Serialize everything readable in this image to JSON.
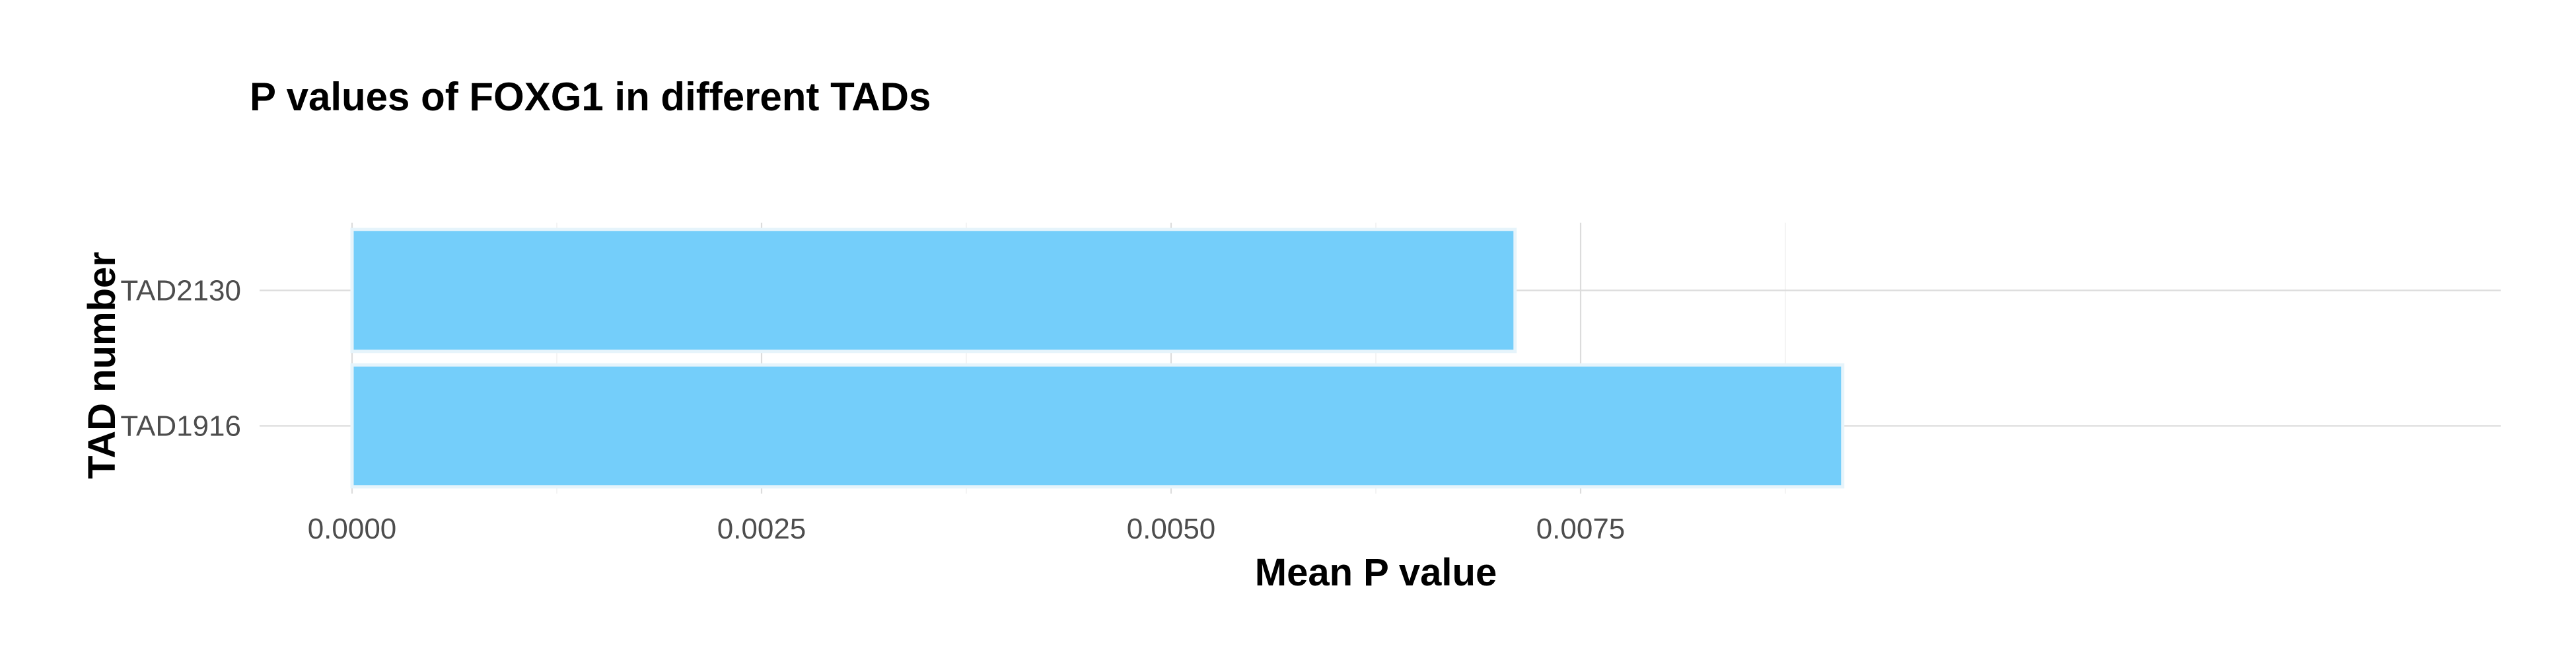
{
  "chart_data": {
    "type": "bar",
    "orientation": "horizontal",
    "title": "P values of FOXG1 in different TADs",
    "xlabel": "Mean P value",
    "ylabel": "TAD number",
    "categories": [
      "TAD2130",
      "TAD1916"
    ],
    "values": [
      0.0071,
      0.0091
    ],
    "xlim": [
      0,
      0.00955
    ],
    "xticks": [
      0.0,
      0.0025,
      0.005,
      0.0075
    ],
    "xtick_labels": [
      "0.0000",
      "0.0025",
      "0.0050",
      "0.0075"
    ],
    "bar_color": "#74cefa",
    "bar_edge_color": "#e6f4fb",
    "grid": true,
    "legend": false
  }
}
